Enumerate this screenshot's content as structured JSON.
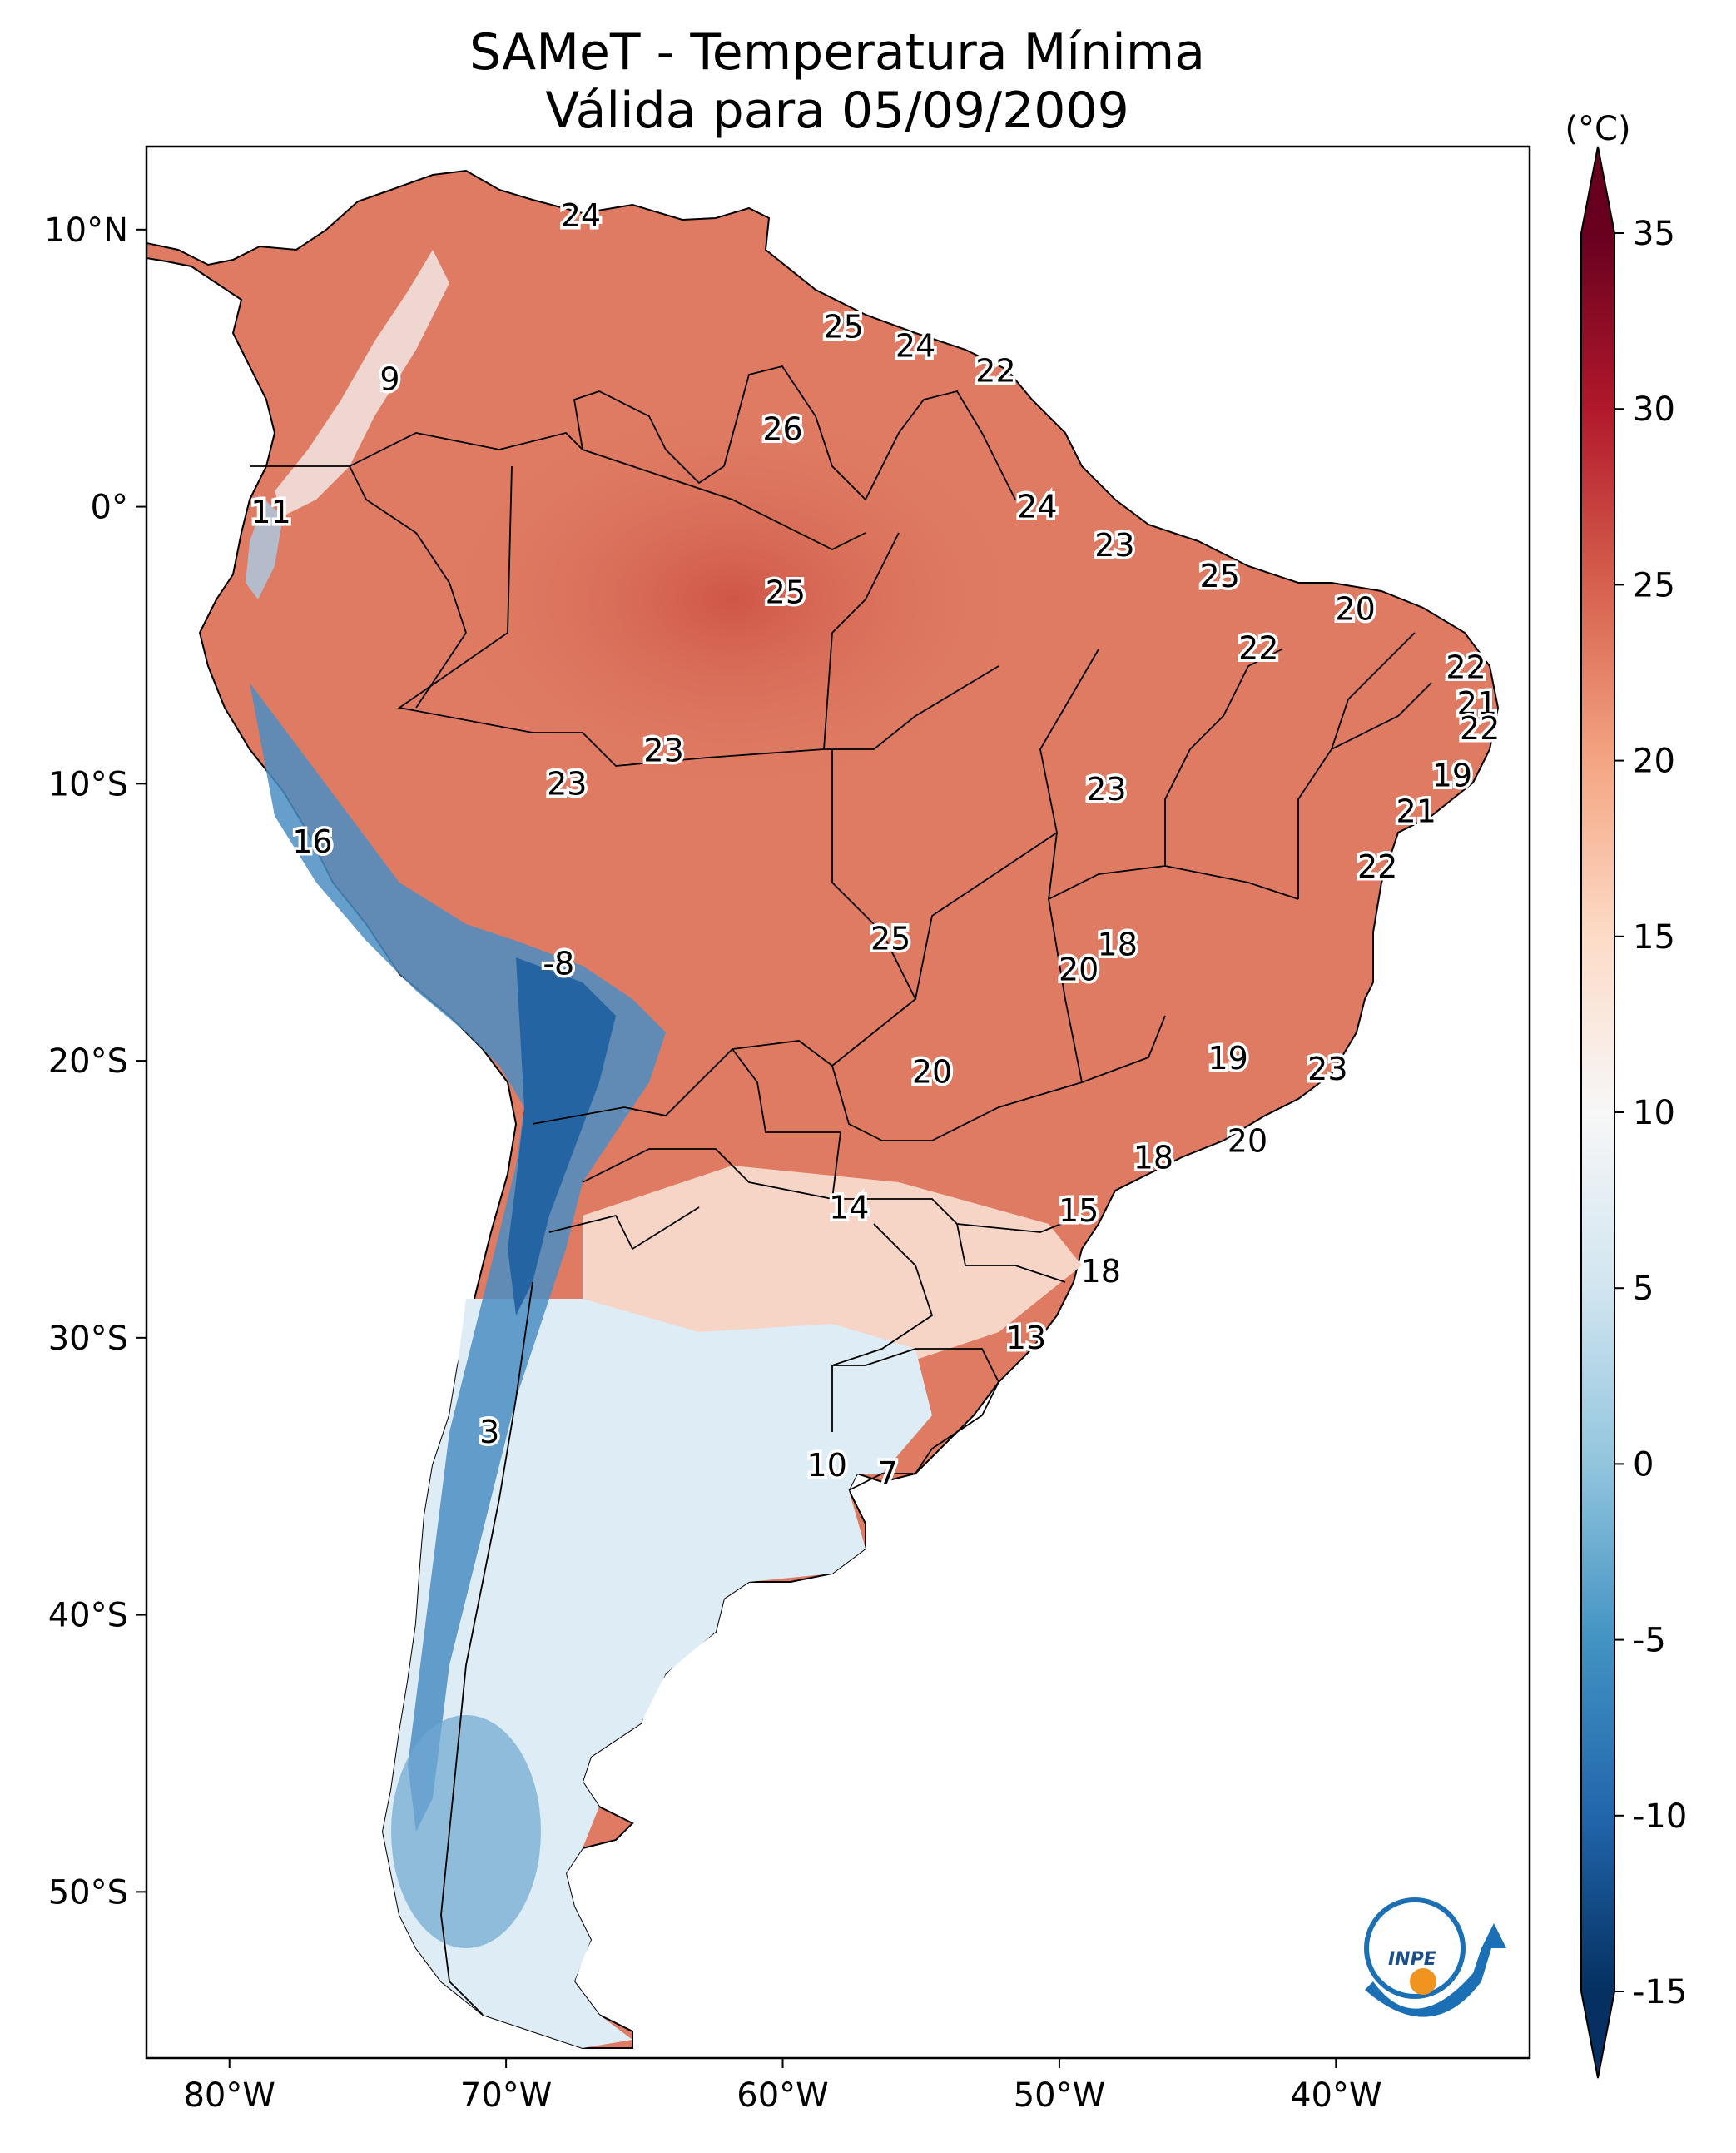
{
  "title": {
    "line1": "SAMeT - Temperatura Mínima",
    "line2": "Válida para 05/09/2009"
  },
  "map": {
    "lon_range": [
      -83,
      -33
    ],
    "lat_range": [
      -56,
      13
    ],
    "lon_ticks": [
      {
        "value": -80,
        "label": "80°W"
      },
      {
        "value": -70,
        "label": "70°W"
      },
      {
        "value": -60,
        "label": "60°W"
      },
      {
        "value": -50,
        "label": "50°W"
      },
      {
        "value": -40,
        "label": "40°W"
      }
    ],
    "lat_ticks": [
      {
        "value": 10,
        "label": "10°N"
      },
      {
        "value": 0,
        "label": "0°"
      },
      {
        "value": -10,
        "label": "10°S"
      },
      {
        "value": -20,
        "label": "20°S"
      },
      {
        "value": -30,
        "label": "30°S"
      },
      {
        "value": -40,
        "label": "40°S"
      },
      {
        "value": -50,
        "label": "50°S"
      }
    ],
    "point_labels": [
      {
        "lon": -67.3,
        "lat": 10.5,
        "value": "24"
      },
      {
        "lon": -57.8,
        "lat": 6.5,
        "value": "25"
      },
      {
        "lon": -55.2,
        "lat": 5.8,
        "value": "24"
      },
      {
        "lon": -52.3,
        "lat": 4.9,
        "value": "22"
      },
      {
        "lon": -74.2,
        "lat": 4.6,
        "value": "9"
      },
      {
        "lon": -60.0,
        "lat": 2.8,
        "value": "26"
      },
      {
        "lon": -78.5,
        "lat": -0.2,
        "value": "11"
      },
      {
        "lon": -50.8,
        "lat": 0.0,
        "value": "24"
      },
      {
        "lon": -48.0,
        "lat": -1.4,
        "value": "23"
      },
      {
        "lon": -59.9,
        "lat": -3.1,
        "value": "25"
      },
      {
        "lon": -44.2,
        "lat": -2.5,
        "value": "25"
      },
      {
        "lon": -39.3,
        "lat": -3.7,
        "value": "20"
      },
      {
        "lon": -42.8,
        "lat": -5.1,
        "value": "22"
      },
      {
        "lon": -35.3,
        "lat": -5.8,
        "value": "22"
      },
      {
        "lon": -34.9,
        "lat": -7.1,
        "value": "21"
      },
      {
        "lon": -34.8,
        "lat": -8.0,
        "value": "22"
      },
      {
        "lon": -64.3,
        "lat": -8.8,
        "value": "23"
      },
      {
        "lon": -67.8,
        "lat": -10.0,
        "value": "23"
      },
      {
        "lon": -48.3,
        "lat": -10.2,
        "value": "23"
      },
      {
        "lon": -35.8,
        "lat": -9.7,
        "value": "19"
      },
      {
        "lon": -37.1,
        "lat": -11.0,
        "value": "21"
      },
      {
        "lon": -38.5,
        "lat": -13.0,
        "value": "22"
      },
      {
        "lon": -77.0,
        "lat": -12.1,
        "value": "16"
      },
      {
        "lon": -56.1,
        "lat": -15.6,
        "value": "25"
      },
      {
        "lon": -47.9,
        "lat": -15.8,
        "value": "18"
      },
      {
        "lon": -49.3,
        "lat": -16.7,
        "value": "20"
      },
      {
        "lon": -68.1,
        "lat": -16.5,
        "value": "-8"
      },
      {
        "lon": -43.9,
        "lat": -19.9,
        "value": "19"
      },
      {
        "lon": -40.3,
        "lat": -20.3,
        "value": "23"
      },
      {
        "lon": -54.6,
        "lat": -20.4,
        "value": "20"
      },
      {
        "lon": -43.2,
        "lat": -22.9,
        "value": "20"
      },
      {
        "lon": -46.6,
        "lat": -23.5,
        "value": "18"
      },
      {
        "lon": -57.6,
        "lat": -25.3,
        "value": "14"
      },
      {
        "lon": -49.3,
        "lat": -25.4,
        "value": "15"
      },
      {
        "lon": -48.5,
        "lat": -27.6,
        "value": "18"
      },
      {
        "lon": -51.2,
        "lat": -30.0,
        "value": "13"
      },
      {
        "lon": -70.6,
        "lat": -33.4,
        "value": "3"
      },
      {
        "lon": -58.4,
        "lat": -34.6,
        "value": "10"
      },
      {
        "lon": -56.2,
        "lat": -34.9,
        "value": "7"
      }
    ]
  },
  "colorbar": {
    "unit": "(°C)",
    "min": -15,
    "max": 35,
    "ticks": [
      "35",
      "30",
      "25",
      "20",
      "15",
      "10",
      "5",
      "0",
      "-5",
      "-10",
      "-15"
    ],
    "colors": [
      "#053061",
      "#2166ac",
      "#4393c3",
      "#92c5de",
      "#d1e5f0",
      "#f7f7f7",
      "#fddbc7",
      "#f4a582",
      "#d6604d",
      "#b2182b",
      "#67001f"
    ]
  },
  "logo": {
    "text": "INPE"
  }
}
